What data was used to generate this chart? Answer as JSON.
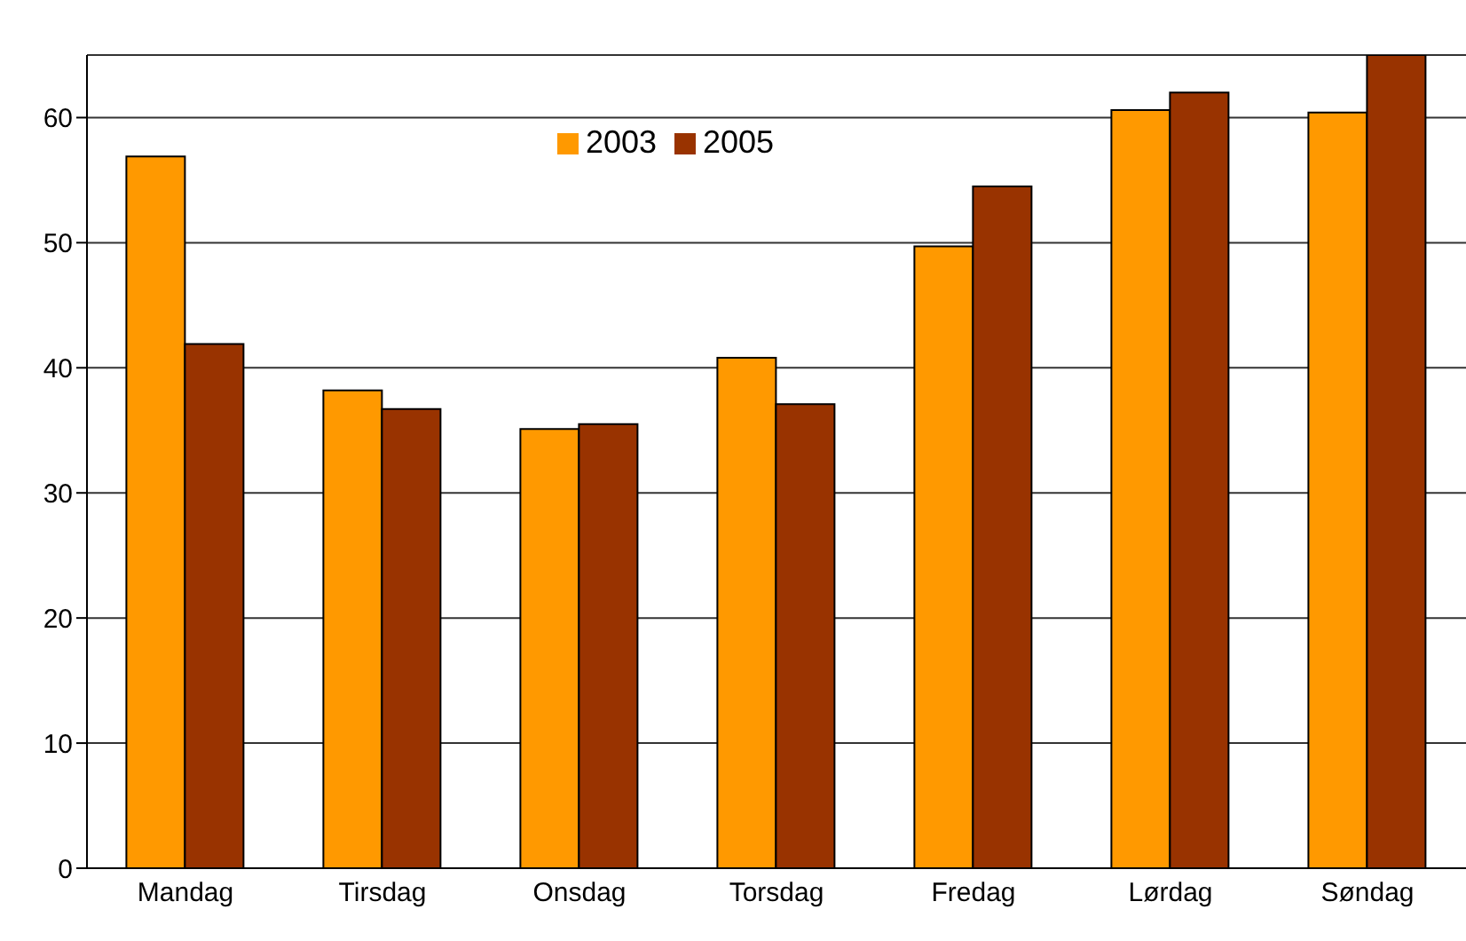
{
  "chart_data": {
    "type": "bar",
    "categories": [
      "Mandag",
      "Tirsdag",
      "Onsdag",
      "Torsdag",
      "Fredag",
      "Lørdag",
      "Søndag"
    ],
    "series": [
      {
        "name": "2003",
        "color": "#ff9900",
        "values": [
          56.9,
          38.2,
          35.1,
          40.8,
          49.7,
          60.6,
          60.4
        ]
      },
      {
        "name": "2005",
        "color": "#993300",
        "values": [
          41.9,
          36.7,
          35.5,
          37.1,
          54.5,
          62.0,
          65.0
        ]
      }
    ],
    "ylim": [
      0,
      65
    ],
    "yticks": [
      0,
      10,
      20,
      30,
      40,
      50,
      60
    ],
    "grid": "y",
    "legend": "top"
  }
}
